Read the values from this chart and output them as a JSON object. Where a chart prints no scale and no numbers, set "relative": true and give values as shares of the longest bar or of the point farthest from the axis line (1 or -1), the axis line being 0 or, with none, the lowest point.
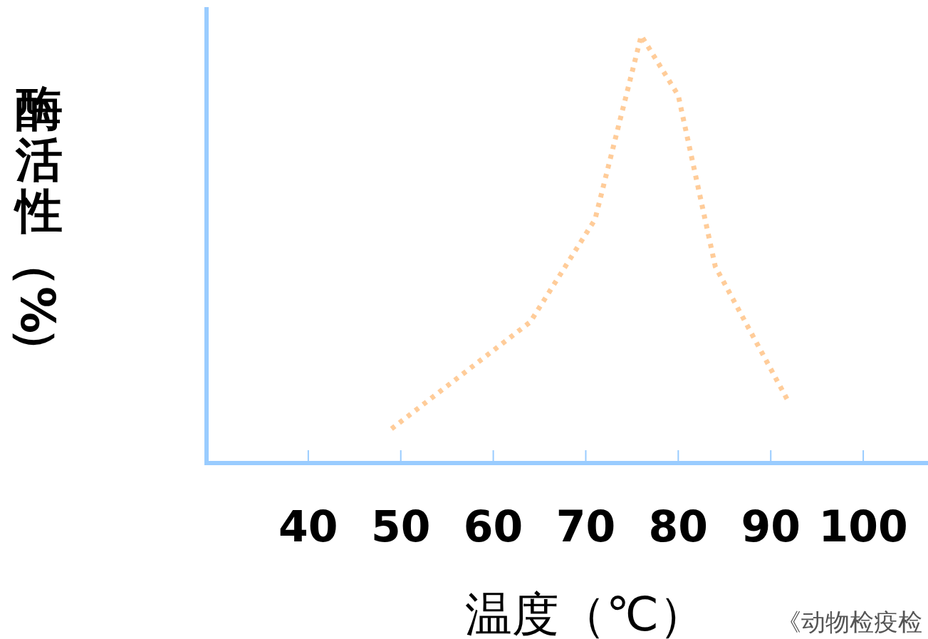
{
  "chart_data": {
    "type": "line",
    "xlabel": "温度（℃）",
    "ylabel": "酶活性（%）",
    "annotations": [
      "《动物检疫检"
    ],
    "relative": true,
    "line_style": "dotted",
    "x": [
      49,
      64,
      71,
      76,
      80,
      84,
      92
    ],
    "xlim": [
      29,
      107
    ],
    "xticks": [
      40,
      50,
      60,
      70,
      80,
      90,
      100
    ],
    "series": [
      {
        "color": "#ffcc99",
        "values": [
          0.08,
          0.33,
          0.57,
          1,
          0.86,
          0.46,
          0.14
        ]
      }
    ]
  }
}
